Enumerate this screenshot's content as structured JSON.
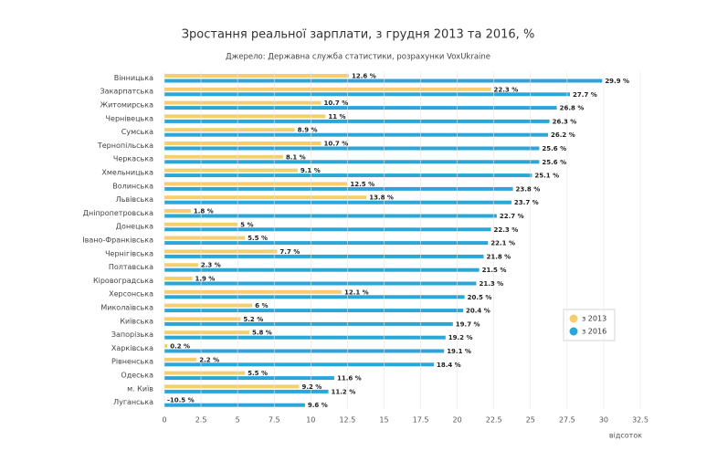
{
  "chart_data": {
    "type": "hbar",
    "title": "Зростання реальної зарплати, з грудня 2013 та 2016, %",
    "subtitle": "Джерело: Державна служба статистики, розрахунки VoxUkraine",
    "xlabel": "відсоток",
    "categories": [
      "Вінницька",
      "Закарпатська",
      "Житомирська",
      "Чернівецька",
      "Сумська",
      "Тернопільська",
      "Черкаська",
      "Хмельницька",
      "Волинська",
      "Львівська",
      "Дніпропетровська",
      "Донецька",
      "Івано-Франківська",
      "Чернігівська",
      "Полтавська",
      "Кіровоградська",
      "Херсонська",
      "Миколаївська",
      "Київська",
      "Запорізька",
      "Харківська",
      "Рівненська",
      "Одеська",
      "м. Київ",
      "Луганська"
    ],
    "series": [
      {
        "name": "з 2013",
        "color": "#f6cf6c",
        "values": [
          12.6,
          22.3,
          10.7,
          11,
          8.9,
          10.7,
          8.1,
          9.1,
          12.5,
          13.8,
          1.8,
          5,
          5.5,
          7.7,
          2.3,
          1.9,
          12.1,
          6,
          5.2,
          5.8,
          0.2,
          2.2,
          5.5,
          9.2,
          -10.5
        ],
        "value_labels": [
          "12.6 %",
          "22.3 %",
          "10.7 %",
          "11 %",
          "8.9 %",
          "10.7 %",
          "8.1 %",
          "9.1 %",
          "12.5 %",
          "13.8 %",
          "1.8 %",
          "5 %",
          "5.5 %",
          "7.7 %",
          "2.3 %",
          "1.9 %",
          "12.1 %",
          "6 %",
          "5.2 %",
          "5.8 %",
          "0.2 %",
          "2.2 %",
          "5.5 %",
          "9.2 %",
          "-10.5 %"
        ]
      },
      {
        "name": "з 2016",
        "color": "#2aa6d9",
        "values": [
          29.9,
          27.7,
          26.8,
          26.3,
          26.2,
          25.6,
          25.6,
          25.1,
          23.8,
          23.7,
          22.7,
          22.3,
          22.1,
          21.8,
          21.5,
          21.3,
          20.5,
          20.4,
          19.7,
          19.2,
          19.1,
          18.4,
          11.6,
          11.2,
          9.6
        ],
        "value_labels": [
          "29.9 %",
          "27.7 %",
          "26.8 %",
          "26.3 %",
          "26.2 %",
          "25.6 %",
          "25.6 %",
          "25.1 %",
          "23.8 %",
          "23.7 %",
          "22.7 %",
          "22.3 %",
          "22.1 %",
          "21.8 %",
          "21.5 %",
          "21.3 %",
          "20.5 %",
          "20.4 %",
          "19.7 %",
          "19.2 %",
          "19.1 %",
          "18.4 %",
          "11.6 %",
          "11.2 %",
          "9.6 %"
        ]
      }
    ],
    "xlim": [
      0,
      32.5
    ],
    "xticks": [
      0,
      2.5,
      5,
      7.5,
      10,
      12.5,
      15,
      17.5,
      20,
      22.5,
      25,
      27.5,
      30,
      32.5
    ],
    "grid": true
  }
}
